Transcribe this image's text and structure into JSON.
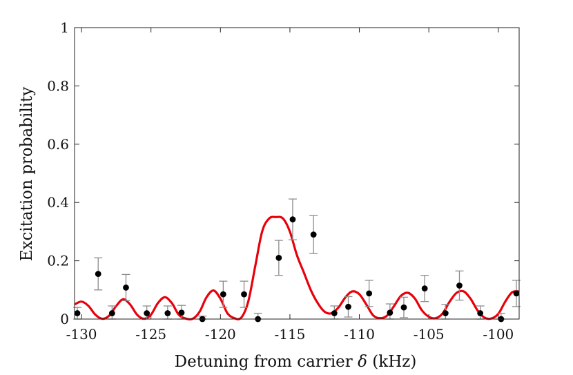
{
  "chart_data": {
    "type": "scatter",
    "title": "",
    "xlabel_parts": [
      "Detuning from carrier ",
      "δ",
      " (kHz)"
    ],
    "ylabel": "Excitation probability",
    "xlim": [
      -130.5,
      -98.5
    ],
    "ylim": [
      0,
      1
    ],
    "xticks": [
      -130,
      -125,
      -120,
      -115,
      -110,
      -105,
      -100
    ],
    "yticks": [
      0,
      0.2,
      0.4,
      0.6,
      0.8,
      1
    ],
    "ytick_labels": [
      "0",
      "0.2",
      "0.4",
      "0.6",
      "0.8",
      "1"
    ],
    "grid": false,
    "colors": {
      "fit": "#e8000b",
      "points": "#000000",
      "errorbars": "#8c8c8c",
      "axes": "#222222"
    },
    "measurements": [
      {
        "x": -130.3,
        "y": 0.02,
        "err": 0.02
      },
      {
        "x": -128.8,
        "y": 0.155,
        "err": 0.055
      },
      {
        "x": -127.8,
        "y": 0.02,
        "err": 0.025
      },
      {
        "x": -126.8,
        "y": 0.108,
        "err": 0.045
      },
      {
        "x": -125.3,
        "y": 0.02,
        "err": 0.025
      },
      {
        "x": -123.8,
        "y": 0.02,
        "err": 0.025
      },
      {
        "x": -122.8,
        "y": 0.022,
        "err": 0.025
      },
      {
        "x": -121.3,
        "y": 0.0,
        "err": 0.01
      },
      {
        "x": -119.8,
        "y": 0.085,
        "err": 0.045
      },
      {
        "x": -118.3,
        "y": 0.085,
        "err": 0.045
      },
      {
        "x": -117.3,
        "y": 0.0,
        "err": 0.02
      },
      {
        "x": -115.8,
        "y": 0.21,
        "err": 0.06
      },
      {
        "x": -114.8,
        "y": 0.342,
        "err": 0.07
      },
      {
        "x": -113.3,
        "y": 0.29,
        "err": 0.065
      },
      {
        "x": -111.8,
        "y": 0.02,
        "err": 0.025
      },
      {
        "x": -110.8,
        "y": 0.042,
        "err": 0.035
      },
      {
        "x": -109.3,
        "y": 0.088,
        "err": 0.045
      },
      {
        "x": -107.8,
        "y": 0.022,
        "err": 0.03
      },
      {
        "x": -106.8,
        "y": 0.04,
        "err": 0.035
      },
      {
        "x": -105.3,
        "y": 0.105,
        "err": 0.045
      },
      {
        "x": -103.8,
        "y": 0.02,
        "err": 0.03
      },
      {
        "x": -102.8,
        "y": 0.115,
        "err": 0.05
      },
      {
        "x": -101.3,
        "y": 0.02,
        "err": 0.025
      },
      {
        "x": -99.8,
        "y": 0.0,
        "err": 0.02
      },
      {
        "x": -98.7,
        "y": 0.088,
        "err": 0.045
      }
    ],
    "fit_curve": {
      "name": "",
      "x": [
        -130.5,
        -130.0,
        -129.5,
        -129.0,
        -128.5,
        -128.0,
        -127.5,
        -127.0,
        -126.5,
        -126.0,
        -125.5,
        -125.0,
        -124.5,
        -124.0,
        -123.5,
        -123.0,
        -122.5,
        -122.0,
        -121.5,
        -121.0,
        -120.5,
        -120.0,
        -119.5,
        -119.0,
        -118.5,
        -118.0,
        -117.5,
        -117.0,
        -116.5,
        -116.0,
        -115.5,
        -115.0,
        -114.5,
        -114.0,
        -113.5,
        -113.0,
        -112.5,
        -112.0,
        -111.5,
        -111.0,
        -110.5,
        -110.0,
        -109.5,
        -109.0,
        -108.5,
        -108.0,
        -107.5,
        -107.0,
        -106.5,
        -106.0,
        -105.5,
        -105.0,
        -104.5,
        -104.0,
        -103.5,
        -103.0,
        -102.5,
        -102.0,
        -101.5,
        -101.0,
        -100.5,
        -100.0,
        -99.5,
        -99.0,
        -98.5
      ],
      "y": [
        0.05,
        0.06,
        0.045,
        0.015,
        0.001,
        0.012,
        0.045,
        0.068,
        0.05,
        0.015,
        0.001,
        0.015,
        0.055,
        0.075,
        0.055,
        0.015,
        0.002,
        0.001,
        0.025,
        0.075,
        0.098,
        0.07,
        0.02,
        0.003,
        0.005,
        0.06,
        0.18,
        0.3,
        0.345,
        0.35,
        0.345,
        0.3,
        0.22,
        0.16,
        0.1,
        0.055,
        0.025,
        0.02,
        0.04,
        0.075,
        0.095,
        0.085,
        0.05,
        0.012,
        0.003,
        0.012,
        0.045,
        0.08,
        0.09,
        0.07,
        0.03,
        0.008,
        0.003,
        0.02,
        0.06,
        0.09,
        0.095,
        0.07,
        0.03,
        0.005,
        0.002,
        0.018,
        0.06,
        0.092,
        0.095
      ]
    }
  }
}
